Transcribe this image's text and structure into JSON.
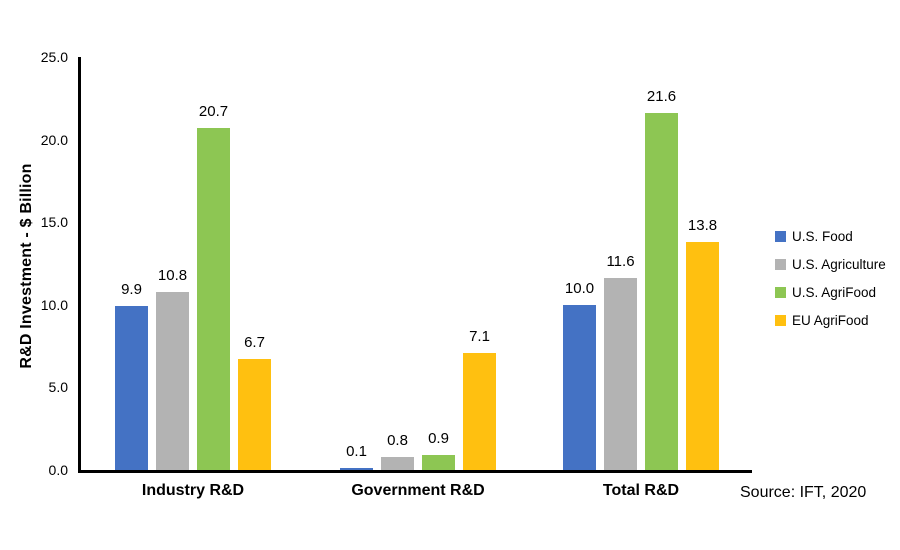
{
  "chart_data": {
    "type": "bar",
    "title": "",
    "categories": [
      "Industry R&D",
      "Government R&D",
      "Total R&D"
    ],
    "series": [
      {
        "name": "U.S. Food",
        "color": "#4472C4",
        "values": [
          9.9,
          0.1,
          10.0
        ]
      },
      {
        "name": "U.S. Agriculture",
        "color": "#B3B3B3",
        "values": [
          10.8,
          0.8,
          11.6
        ]
      },
      {
        "name": "U.S. AgriFood",
        "color": "#8DC653",
        "values": [
          20.7,
          0.9,
          21.6
        ]
      },
      {
        "name": "EU AgriFood",
        "color": "#FFC010",
        "values": [
          6.7,
          7.1,
          13.8
        ]
      }
    ],
    "xlabel": "",
    "ylabel": "R&D Investment - $ Billion",
    "ylim": [
      0,
      25
    ],
    "ytick_step": 5,
    "ytick_labels": [
      "0.0",
      "5.0",
      "10.0",
      "15.0",
      "20.0",
      "25.0"
    ],
    "grid": false,
    "legend_position": "right",
    "value_labels": true,
    "axis_color": "#000000"
  },
  "source_note": "Source: IFT, 2020"
}
